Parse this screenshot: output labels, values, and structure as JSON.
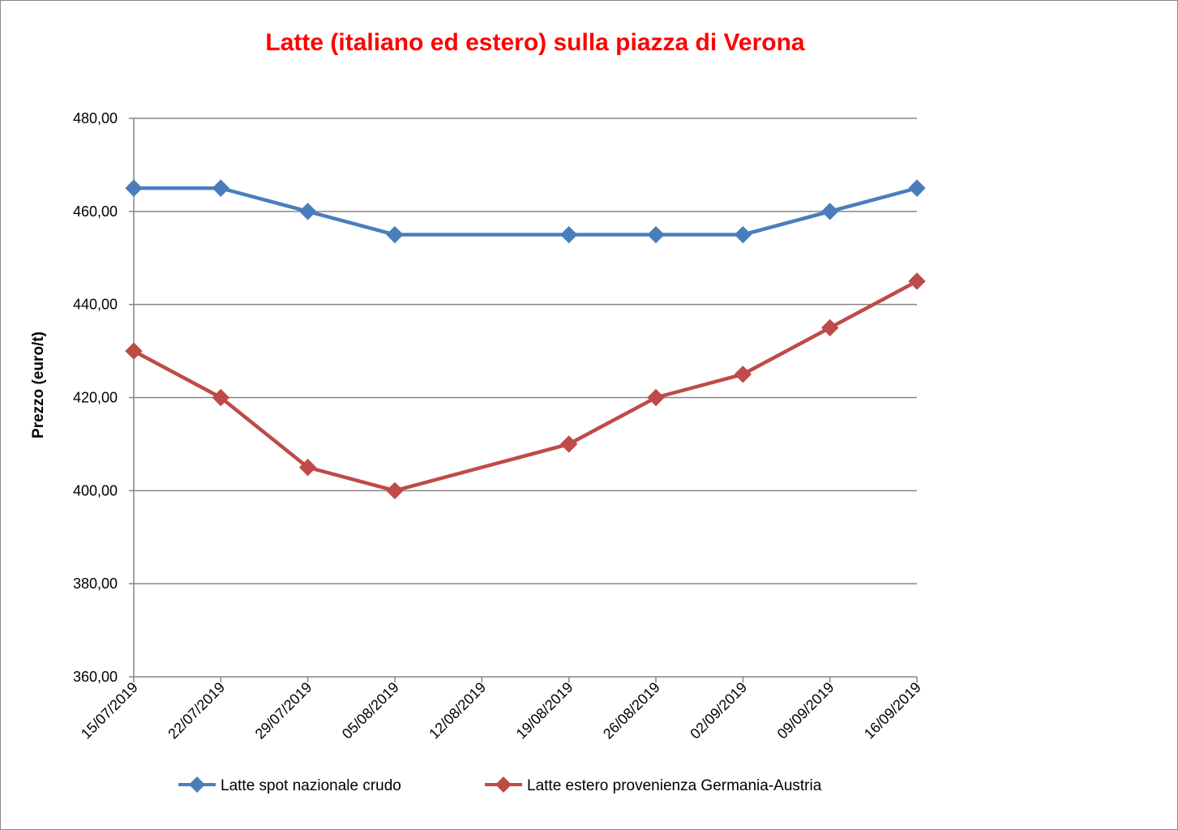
{
  "chart_data": {
    "type": "line",
    "title": "Latte (italiano ed estero) sulla piazza di Verona",
    "xlabel": "",
    "ylabel": "Prezzo (euro/t)",
    "categories": [
      "15/07/2019",
      "22/07/2019",
      "29/07/2019",
      "05/08/2019",
      "12/08/2019",
      "19/08/2019",
      "26/08/2019",
      "02/09/2019",
      "09/09/2019",
      "16/09/2019"
    ],
    "y_tick_labels": [
      "360,00",
      "380,00",
      "400,00",
      "420,00",
      "440,00",
      "460,00",
      "480,00"
    ],
    "ylim": [
      360,
      480
    ],
    "y_step": 20,
    "grid": "horizontal",
    "legend_position": "bottom",
    "series": [
      {
        "name": "Latte spot nazionale crudo",
        "color": "#4a7ebb",
        "marker": "diamond",
        "values": [
          465,
          465,
          460,
          455,
          null,
          455,
          455,
          455,
          460,
          465
        ]
      },
      {
        "name": "Latte estero provenienza Germania-Austria",
        "color": "#be4b48",
        "marker": "diamond",
        "values": [
          430,
          420,
          405,
          400,
          null,
          410,
          420,
          425,
          435,
          445
        ]
      }
    ]
  }
}
